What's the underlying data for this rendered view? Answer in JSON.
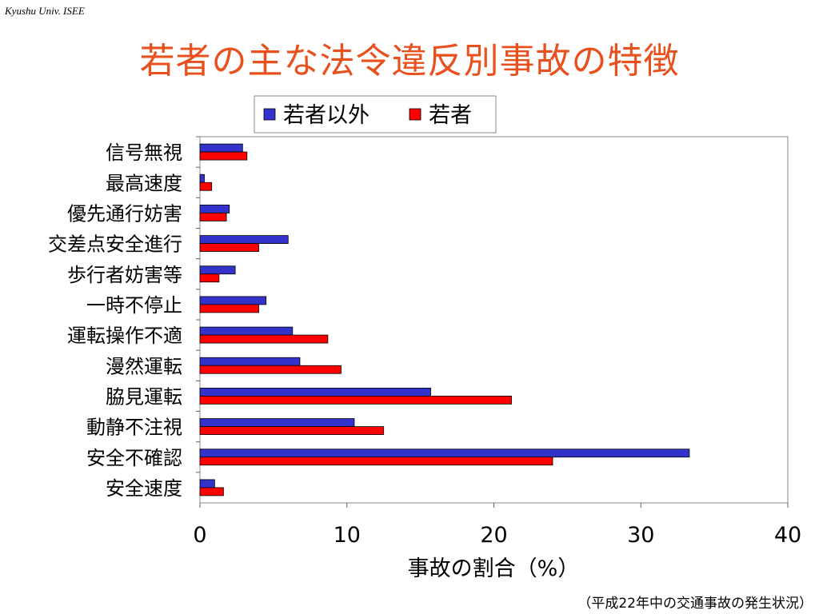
{
  "header": {
    "org": "Kyushu Univ. ISEE"
  },
  "title": "若者の主な法令違反別事故の特徴",
  "footnote": "（平成22年中の交通事故の発生状況）",
  "chart_data": {
    "type": "bar",
    "orientation": "horizontal",
    "title": "",
    "xlabel": "事故の割合（%）",
    "ylabel": "",
    "xlim": [
      0,
      40
    ],
    "xticks": [
      0,
      10,
      20,
      30,
      40
    ],
    "grid": false,
    "legend_position": "top",
    "categories": [
      "信号無視",
      "最高速度",
      "優先通行妨害",
      "交差点安全進行",
      "歩行者妨害等",
      "一時不停止",
      "運転操作不適",
      "漫然運転",
      "脇見運転",
      "動静不注視",
      "安全不確認",
      "安全速度"
    ],
    "series": [
      {
        "name": "若者以外",
        "color": "#3333cc",
        "values": [
          2.9,
          0.3,
          2.0,
          6.0,
          2.4,
          4.5,
          6.3,
          6.8,
          15.7,
          10.5,
          33.3,
          1.0
        ]
      },
      {
        "name": "若者",
        "color": "#ff0000",
        "values": [
          3.2,
          0.8,
          1.8,
          4.0,
          1.3,
          4.0,
          8.7,
          9.6,
          21.2,
          12.5,
          24.0,
          1.6
        ]
      }
    ]
  }
}
